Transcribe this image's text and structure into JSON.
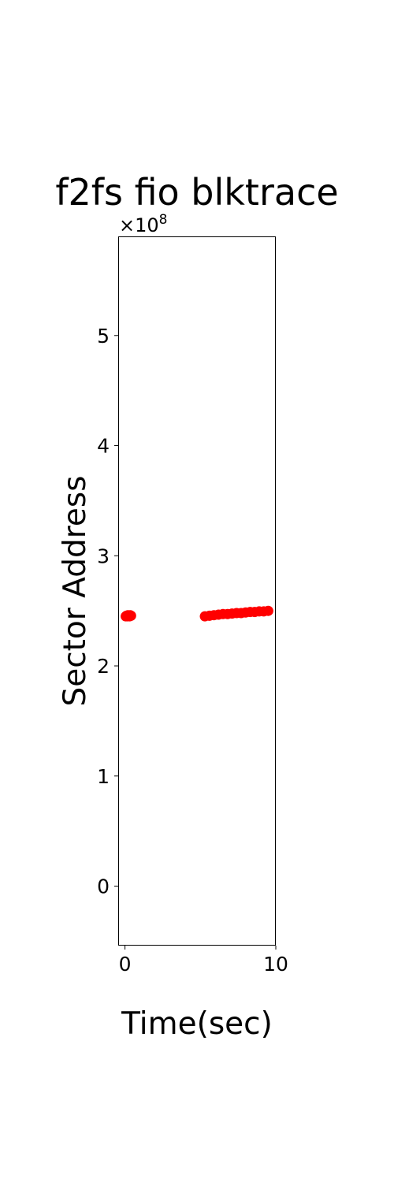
{
  "chart_data": {
    "type": "scatter",
    "title": "f2fs fio blktrace",
    "xlabel": "Time(sec)",
    "ylabel": "Sector Address",
    "y_scale_label": "×10",
    "y_scale_exponent": "8",
    "xlim": [
      -0.45,
      10.0
    ],
    "ylim": [
      -0.54,
      5.9
    ],
    "xticks": [
      0,
      10
    ],
    "yticks": [
      0,
      1,
      2,
      3,
      4,
      5
    ],
    "grid": false,
    "legend": "none",
    "marker_color": "#ff0000",
    "series": [
      {
        "x": [
          0.05,
          0.1,
          0.15,
          0.2,
          0.25,
          0.3,
          0.35,
          0.4,
          5.3,
          5.6,
          5.9,
          6.2,
          6.5,
          6.8,
          7.1,
          7.4,
          7.7,
          8.0,
          8.3,
          8.6,
          8.9,
          9.2,
          9.5
        ],
        "y": [
          2.45,
          2.455,
          2.45,
          2.46,
          2.455,
          2.45,
          2.46,
          2.455,
          2.45,
          2.455,
          2.46,
          2.465,
          2.47,
          2.47,
          2.475,
          2.48,
          2.48,
          2.485,
          2.49,
          2.49,
          2.495,
          2.495,
          2.5
        ]
      }
    ]
  }
}
